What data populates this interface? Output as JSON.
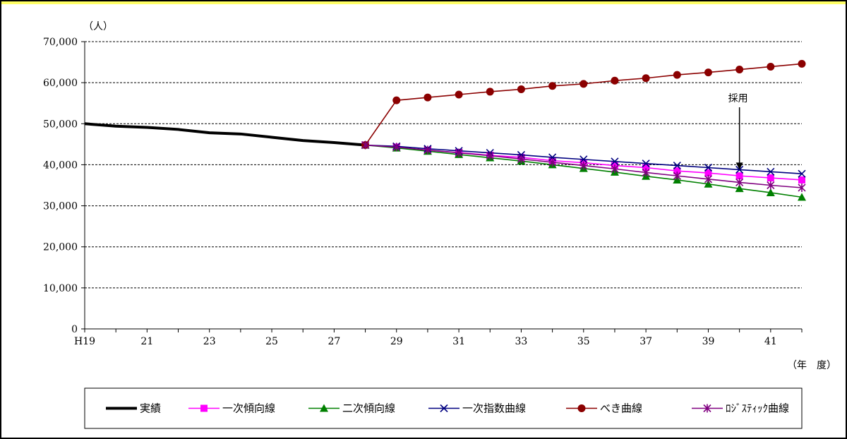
{
  "chart_data": {
    "type": "line",
    "y_unit_label": "（人）",
    "x_unit_label": "（年　度）",
    "ylim": [
      0,
      70000
    ],
    "y_ticks": [
      0,
      10000,
      20000,
      30000,
      40000,
      50000,
      60000,
      70000
    ],
    "y_tick_labels": [
      "0",
      "10,000",
      "20,000",
      "30,000",
      "40,000",
      "50,000",
      "60,000",
      "70,000"
    ],
    "xlim": [
      19,
      42
    ],
    "x_ticks": [
      19,
      21,
      23,
      25,
      27,
      29,
      31,
      33,
      35,
      37,
      39,
      41
    ],
    "x_tick_labels": [
      "H19",
      "21",
      "23",
      "25",
      "27",
      "29",
      "31",
      "33",
      "35",
      "37",
      "39",
      "41"
    ],
    "grid": "horizontal dashed",
    "legend_placement": "bottom",
    "annotation": {
      "text": "採用",
      "x": 40,
      "y": 38300
    },
    "series": [
      {
        "name": "実績",
        "color": "#000000",
        "marker": "none",
        "x": [
          19,
          20,
          21,
          22,
          23,
          24,
          25,
          26,
          27,
          28
        ],
        "y": [
          50000,
          49400,
          49100,
          48600,
          47800,
          47500,
          46700,
          45900,
          45400,
          44800
        ]
      },
      {
        "name": "一次傾向線",
        "color": "#ff00ff",
        "marker": "square",
        "x": [
          28,
          29,
          30,
          31,
          32,
          33,
          34,
          35,
          36,
          37,
          38,
          39,
          40,
          41,
          42
        ],
        "y": [
          44800,
          44300,
          43500,
          43000,
          42300,
          41800,
          41000,
          40500,
          39800,
          39300,
          38500,
          38000,
          37300,
          36800,
          36300
        ]
      },
      {
        "name": "二次傾向線",
        "color": "#008000",
        "marker": "triangle",
        "x": [
          28,
          29,
          30,
          31,
          32,
          33,
          34,
          35,
          36,
          37,
          38,
          39,
          40,
          41,
          42
        ],
        "y": [
          44800,
          44100,
          43300,
          42500,
          41700,
          40900,
          40000,
          39100,
          38200,
          37200,
          36300,
          35300,
          34200,
          33200,
          32100
        ]
      },
      {
        "name": "一次指数曲線",
        "color": "#000080",
        "marker": "x",
        "x": [
          28,
          29,
          30,
          31,
          32,
          33,
          34,
          35,
          36,
          37,
          38,
          39,
          40,
          41,
          42
        ],
        "y": [
          44800,
          44500,
          43900,
          43400,
          42900,
          42400,
          41800,
          41300,
          40800,
          40300,
          39800,
          39300,
          38800,
          38300,
          37800
        ]
      },
      {
        "name": "べき曲線",
        "color": "#8b0000",
        "marker": "circle",
        "x": [
          28,
          29,
          30,
          31,
          32,
          33,
          34,
          35,
          36,
          37,
          38,
          39,
          40,
          41,
          42
        ],
        "y": [
          44800,
          55700,
          56400,
          57100,
          57800,
          58400,
          59200,
          59700,
          60500,
          61100,
          61900,
          62500,
          63200,
          63900,
          64600
        ]
      },
      {
        "name": "ﾛｼﾞｽﾃｨｯｸ曲線",
        "color": "#800080",
        "marker": "asterisk",
        "x": [
          28,
          29,
          30,
          31,
          32,
          33,
          34,
          35,
          36,
          37,
          38,
          39,
          40,
          41,
          42
        ],
        "y": [
          44800,
          44300,
          43600,
          42900,
          42200,
          41400,
          40600,
          39800,
          39000,
          38100,
          37300,
          36500,
          35700,
          35000,
          34400
        ]
      }
    ]
  }
}
